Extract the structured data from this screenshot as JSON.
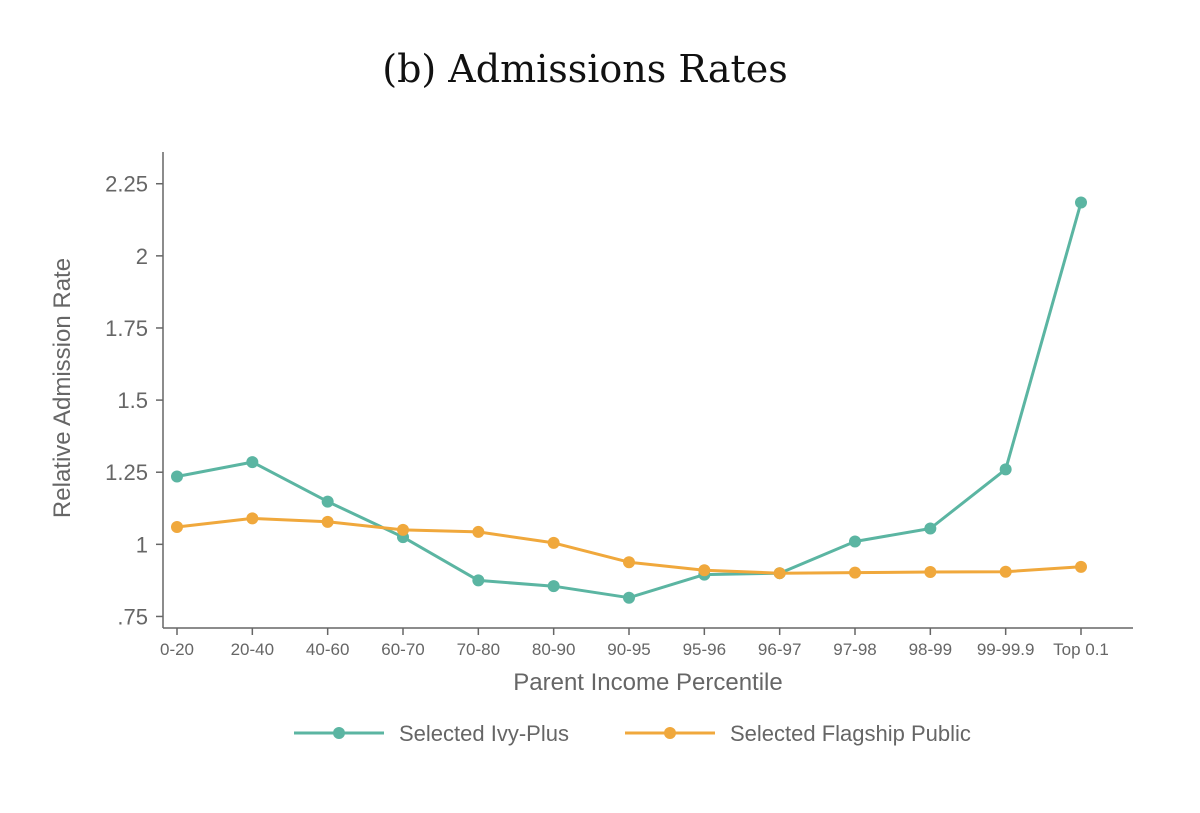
{
  "chart_data": {
    "type": "line",
    "title": "(b) Admissions Rates",
    "xlabel": "Parent Income Percentile",
    "ylabel": "Relative Admission Rate",
    "categories": [
      "0-20",
      "20-40",
      "40-60",
      "60-70",
      "70-80",
      "80-90",
      "90-95",
      "95-96",
      "96-97",
      "97-98",
      "98-99",
      "99-99.9",
      "Top 0.1"
    ],
    "yticks": [
      0.75,
      1,
      1.25,
      1.5,
      1.75,
      2,
      2.25
    ],
    "ytick_labels": [
      ".75",
      "1",
      "1.25",
      "1.5",
      "1.75",
      "2",
      "2.25"
    ],
    "ylim": [
      0.71,
      2.36
    ],
    "grid": false,
    "legend_position": "bottom",
    "series": [
      {
        "name": "Selected Ivy-Plus",
        "color": "#5bb5a2",
        "values": [
          1.235,
          1.285,
          1.148,
          1.025,
          0.875,
          0.855,
          0.815,
          0.895,
          0.9,
          1.01,
          1.055,
          1.26,
          2.185
        ]
      },
      {
        "name": "Selected Flagship Public",
        "color": "#f0a83c",
        "values": [
          1.06,
          1.09,
          1.078,
          1.05,
          1.043,
          1.005,
          0.938,
          0.91,
          0.9,
          0.902,
          0.904,
          0.905,
          0.922
        ]
      }
    ]
  }
}
